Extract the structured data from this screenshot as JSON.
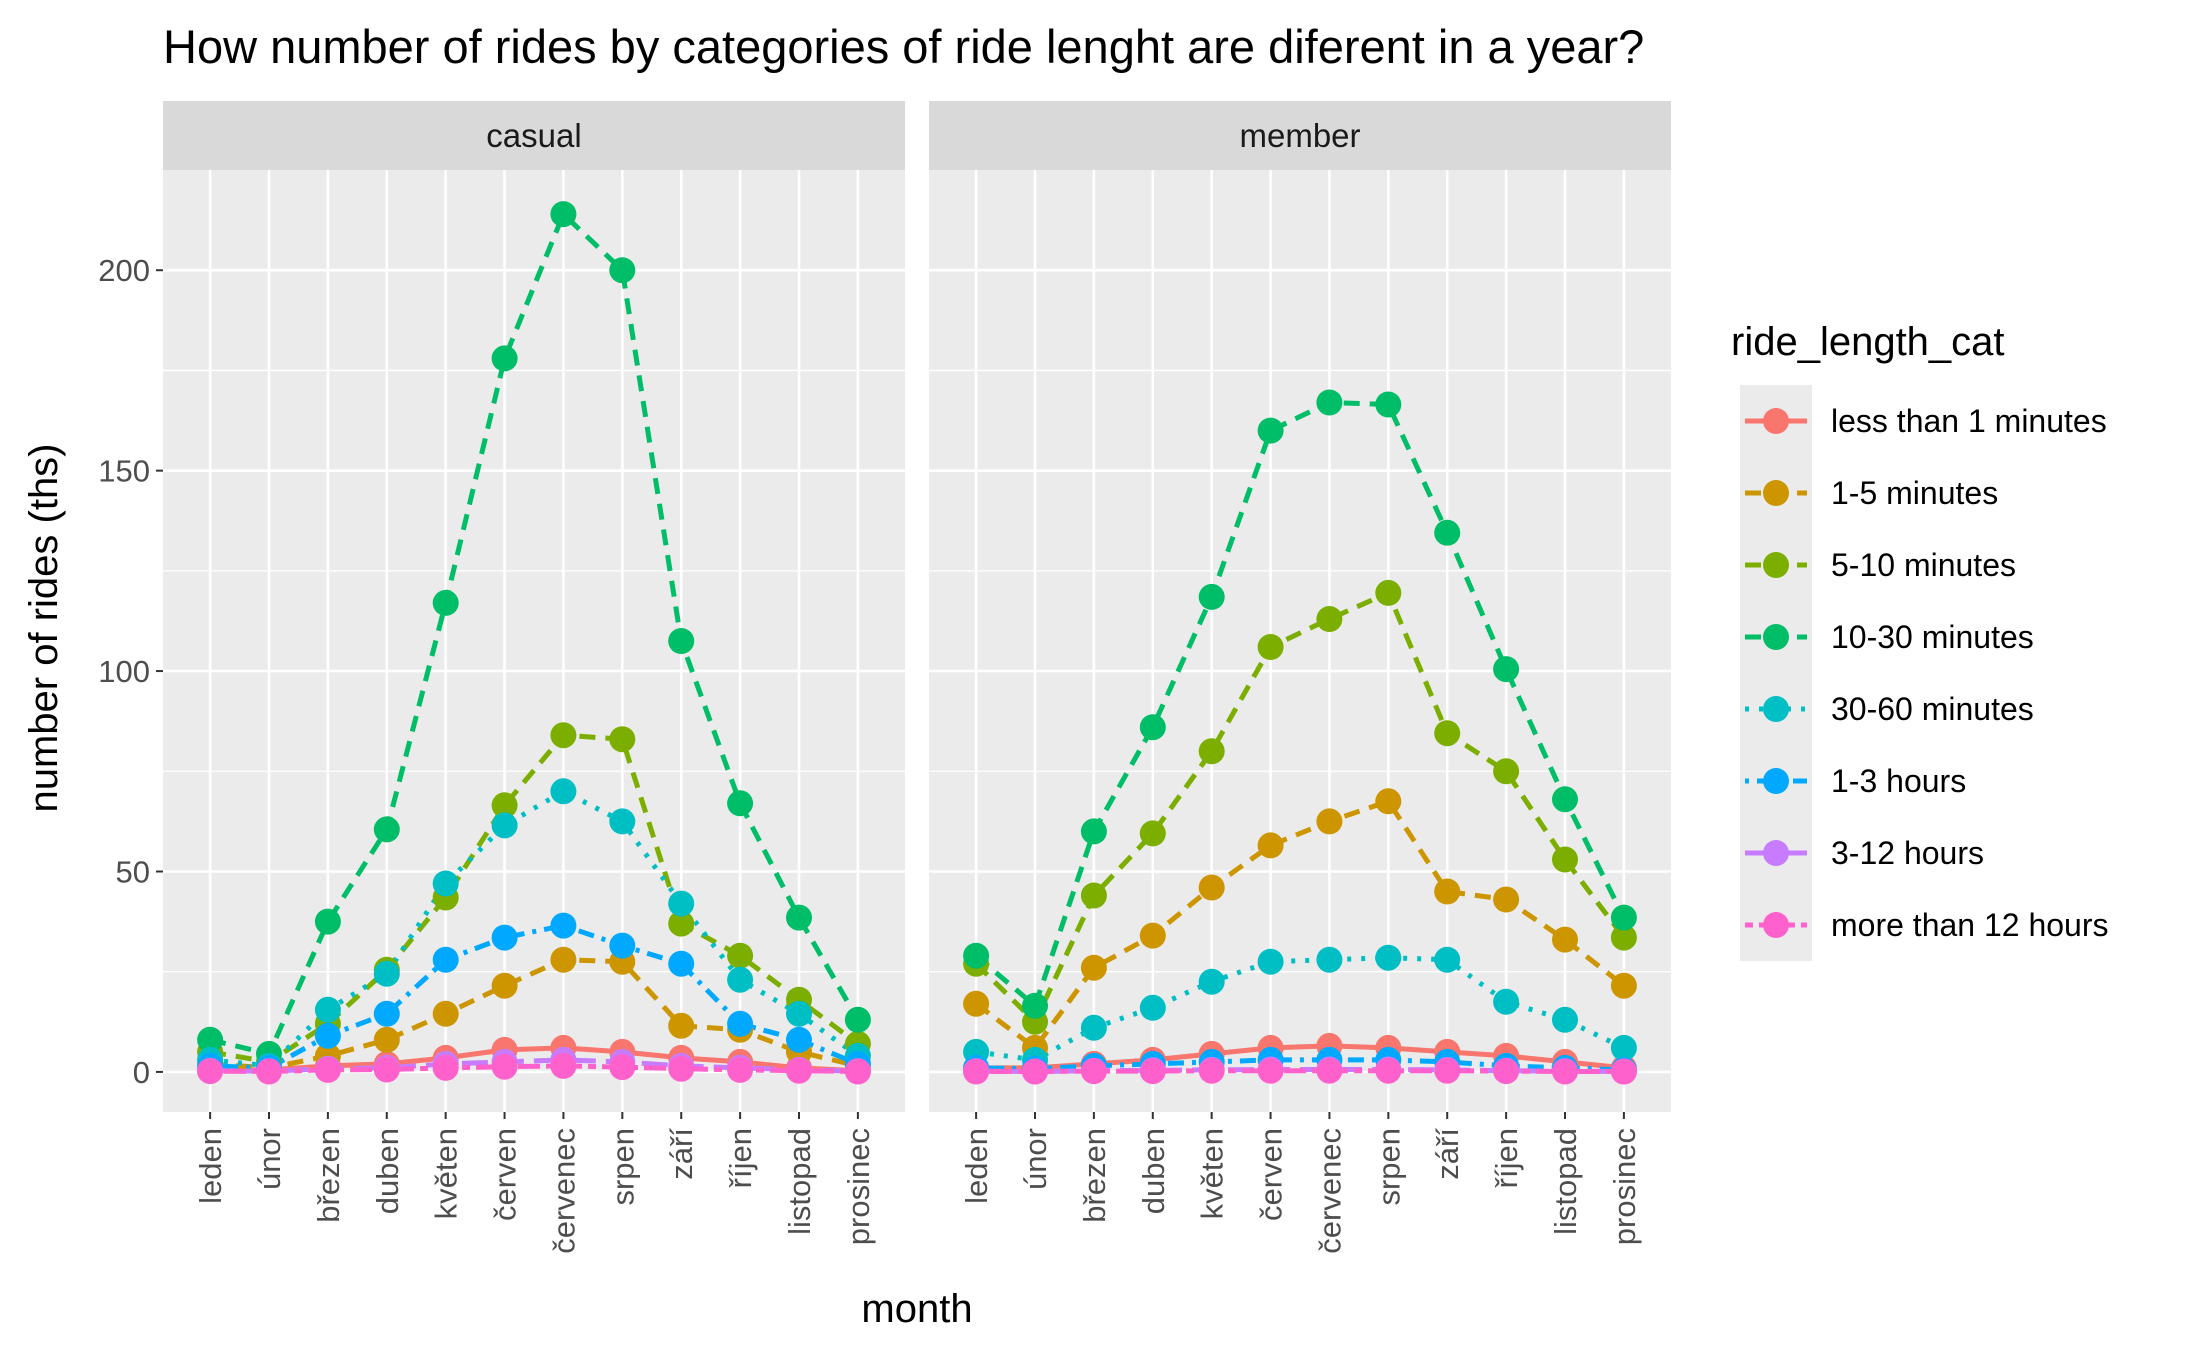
{
  "chart_data": {
    "type": "line",
    "title": "How number of rides by categories of ride lenght are diferent in a year?",
    "xlabel": "month",
    "ylabel": "number of rides (ths)",
    "ylim": [
      -10,
      225
    ],
    "yticks": [
      0,
      50,
      100,
      150,
      200
    ],
    "grid": true,
    "legend": {
      "title": "ride_length_cat",
      "position": "right"
    },
    "categories": [
      "leden",
      "únor",
      "březen",
      "duben",
      "květen",
      "červen",
      "červenec",
      "srpen",
      "září",
      "říjen",
      "listopad",
      "prosinec"
    ],
    "facets": [
      {
        "name": "casual",
        "series": [
          {
            "name": "less than 1 minutes",
            "color": "#F8766D",
            "dash": "solid",
            "values": [
              0.5,
              0.5,
              1.5,
              2,
              3.5,
              5.5,
              6,
              5,
              3.5,
              2.5,
              1,
              0.3
            ]
          },
          {
            "name": "1-5 minutes",
            "color": "#CD9600",
            "dash": "dashed",
            "values": [
              2,
              1,
              4,
              8,
              14.5,
              21.5,
              28,
              27.5,
              11.5,
              10.5,
              5,
              1.5
            ]
          },
          {
            "name": "5-10 minutes",
            "color": "#7CAE00",
            "dash": "dashed",
            "values": [
              5,
              2.5,
              12,
              25.5,
              43.5,
              66.5,
              84,
              83,
              37,
              29,
              18,
              7
            ]
          },
          {
            "name": "10-30 minutes",
            "color": "#00BE67",
            "dash": "dashed",
            "values": [
              8,
              4.5,
              37.5,
              60.5,
              117,
              178,
              214,
              200,
              107.5,
              67,
              38.5,
              13
            ]
          },
          {
            "name": "30-60 minutes",
            "color": "#00BFC4",
            "dash": "dotted",
            "values": [
              3,
              1.5,
              15.5,
              24.5,
              47,
              61.5,
              70,
              62.5,
              42,
              23,
              14.5,
              4
            ]
          },
          {
            "name": "1-3 hours",
            "color": "#00A9FF",
            "dash": "dashdot",
            "values": [
              1.5,
              1,
              9,
              14.5,
              28,
              33.5,
              36.5,
              31.5,
              27,
              12,
              8,
              2
            ]
          },
          {
            "name": "3-12 hours",
            "color": "#C77CFF",
            "dash": "longdash",
            "values": [
              0.3,
              0.2,
              0.8,
              1,
              2,
              2.5,
              3,
              2.5,
              1.5,
              1,
              0.5,
              0.2
            ]
          },
          {
            "name": "more than 12 hours",
            "color": "#FF61CC",
            "dash": "twodash",
            "values": [
              0.2,
              0.1,
              0.5,
              0.6,
              1,
              1.3,
              1.5,
              1.2,
              0.8,
              0.5,
              0.3,
              0.1
            ]
          }
        ]
      },
      {
        "name": "member",
        "series": [
          {
            "name": "less than 1 minutes",
            "color": "#F8766D",
            "dash": "solid",
            "values": [
              1,
              1,
              2,
              3,
              4.5,
              6,
              6.5,
              6,
              5,
              4,
              2.5,
              1
            ]
          },
          {
            "name": "1-5 minutes",
            "color": "#CD9600",
            "dash": "dashed",
            "values": [
              17,
              6,
              26,
              34,
              46,
              56.5,
              62.5,
              67.5,
              45,
              43,
              33,
              21.5
            ]
          },
          {
            "name": "5-10 minutes",
            "color": "#7CAE00",
            "dash": "dashed",
            "values": [
              27,
              12.5,
              44,
              59.5,
              80,
              106,
              113,
              119.5,
              84.5,
              75,
              53,
              33.5
            ]
          },
          {
            "name": "10-30 minutes",
            "color": "#00BE67",
            "dash": "dashed",
            "values": [
              29,
              16.5,
              60,
              86,
              118.5,
              160,
              167,
              166.5,
              134.5,
              100.5,
              68,
              38.5
            ]
          },
          {
            "name": "30-60 minutes",
            "color": "#00BFC4",
            "dash": "dotted",
            "values": [
              5,
              3,
              11,
              16,
              22.5,
              27.5,
              28,
              28.5,
              28,
              17.5,
              13,
              6
            ]
          },
          {
            "name": "1-3 hours",
            "color": "#00A9FF",
            "dash": "dashdot",
            "values": [
              1,
              0.8,
              1.5,
              2,
              2.5,
              3,
              3,
              3,
              2.5,
              1.5,
              1,
              0.5
            ]
          },
          {
            "name": "3-12 hours",
            "color": "#C77CFF",
            "dash": "longdash",
            "values": [
              0.2,
              0.1,
              0.3,
              0.4,
              0.5,
              0.6,
              0.6,
              0.6,
              0.5,
              0.3,
              0.2,
              0.1
            ]
          },
          {
            "name": "more than 12 hours",
            "color": "#FF61CC",
            "dash": "twodash",
            "values": [
              0.1,
              0.1,
              0.2,
              0.2,
              0.3,
              0.3,
              0.3,
              0.3,
              0.3,
              0.2,
              0.1,
              0.1
            ]
          }
        ]
      }
    ]
  }
}
